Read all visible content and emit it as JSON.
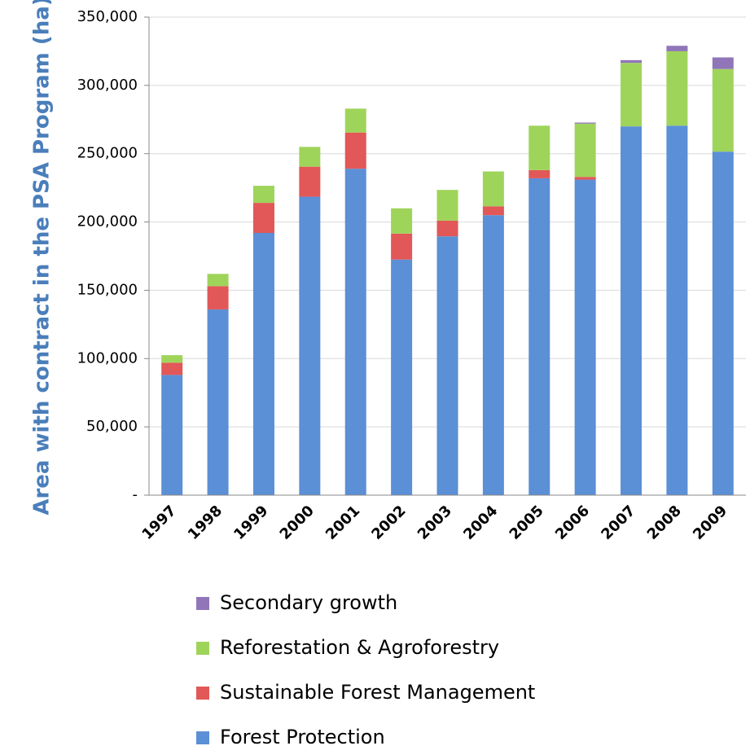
{
  "chart_data": {
    "type": "stacked_bar",
    "y_label": "Area with contract in the PSA Program (ha)",
    "categories": [
      "1997",
      "1998",
      "1999",
      "2000",
      "2001",
      "2002",
      "2003",
      "2004",
      "2005",
      "2006",
      "2007",
      "2008",
      "2009"
    ],
    "series": [
      {
        "name": "Forest Protection",
        "color": "#5b8fd6",
        "values": [
          88000,
          136000,
          192000,
          218500,
          239000,
          172500,
          189500,
          205000,
          232000,
          231000,
          270000,
          270500,
          251500
        ]
      },
      {
        "name": "Sustainable Forest Management",
        "color": "#e25757",
        "values": [
          9000,
          17000,
          22000,
          22000,
          26500,
          19000,
          11500,
          6500,
          6000,
          2000,
          0,
          0,
          0
        ]
      },
      {
        "name": "Reforestation & Agroforestry",
        "color": "#9fd45a",
        "values": [
          5500,
          9000,
          12500,
          14500,
          17500,
          18500,
          22500,
          25500,
          32500,
          39000,
          46500,
          54500,
          60500
        ]
      },
      {
        "name": "Secondary growth",
        "color": "#9076b8",
        "values": [
          0,
          0,
          0,
          0,
          0,
          0,
          0,
          0,
          0,
          800,
          2000,
          4000,
          8500
        ]
      }
    ],
    "ylim": [
      0,
      350000
    ],
    "yticks": [
      {
        "value": 0,
        "label": "-"
      },
      {
        "value": 50000,
        "label": "50,000"
      },
      {
        "value": 100000,
        "label": "100,000"
      },
      {
        "value": 150000,
        "label": "150,000"
      },
      {
        "value": 200000,
        "label": "200,000"
      },
      {
        "value": 250000,
        "label": "250,000"
      },
      {
        "value": 300000,
        "label": "300,000"
      },
      {
        "value": 350000,
        "label": "350,000"
      }
    ],
    "grid": true,
    "legend": "bottom"
  }
}
